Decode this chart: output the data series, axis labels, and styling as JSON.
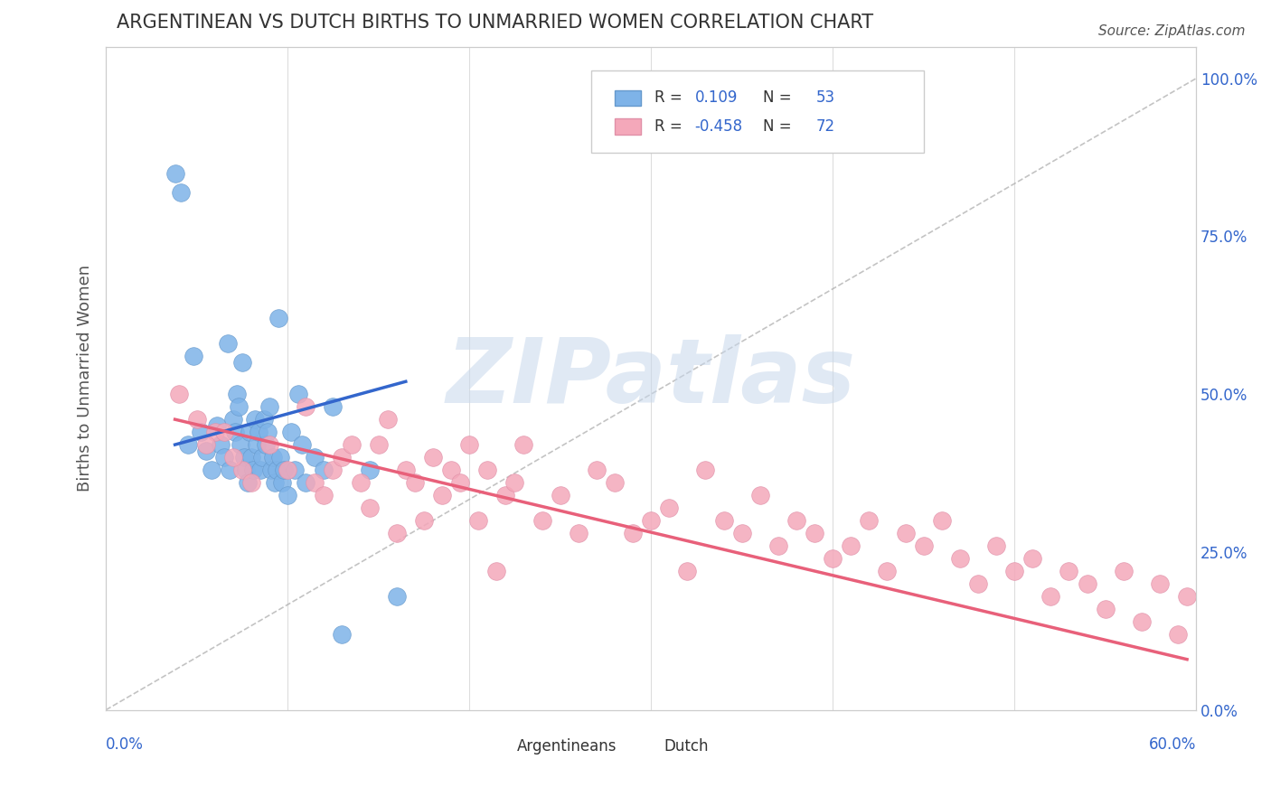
{
  "title": "ARGENTINEAN VS DUTCH BIRTHS TO UNMARRIED WOMEN CORRELATION CHART",
  "source": "Source: ZipAtlas.com",
  "ylabel": "Births to Unmarried Women",
  "right_yticks": [
    "0.0%",
    "25.0%",
    "50.0%",
    "75.0%",
    "100.0%"
  ],
  "right_ytick_vals": [
    0.0,
    0.25,
    0.5,
    0.75,
    1.0
  ],
  "xlim": [
    0.0,
    0.6
  ],
  "ylim": [
    0.0,
    1.05
  ],
  "legend_blue_r": "0.109",
  "legend_blue_n": "53",
  "legend_pink_r": "-0.458",
  "legend_pink_n": "72",
  "blue_color": "#7EB3E8",
  "pink_color": "#F4A8BA",
  "blue_line_color": "#3366CC",
  "pink_line_color": "#E8607A",
  "watermark_color": "#C8D8EC",
  "title_color": "#333333",
  "axis_label_color": "#3366CC",
  "blue_scatter_x": [
    0.038,
    0.041,
    0.045,
    0.048,
    0.052,
    0.055,
    0.058,
    0.061,
    0.063,
    0.065,
    0.067,
    0.068,
    0.07,
    0.071,
    0.072,
    0.073,
    0.074,
    0.075,
    0.076,
    0.077,
    0.078,
    0.079,
    0.08,
    0.081,
    0.082,
    0.083,
    0.084,
    0.085,
    0.086,
    0.087,
    0.088,
    0.089,
    0.09,
    0.091,
    0.092,
    0.093,
    0.094,
    0.095,
    0.096,
    0.097,
    0.098,
    0.1,
    0.102,
    0.104,
    0.106,
    0.108,
    0.11,
    0.115,
    0.12,
    0.125,
    0.13,
    0.145,
    0.16
  ],
  "blue_scatter_y": [
    0.85,
    0.82,
    0.42,
    0.56,
    0.44,
    0.41,
    0.38,
    0.45,
    0.42,
    0.4,
    0.58,
    0.38,
    0.46,
    0.44,
    0.5,
    0.48,
    0.42,
    0.55,
    0.4,
    0.38,
    0.36,
    0.44,
    0.4,
    0.38,
    0.46,
    0.42,
    0.44,
    0.38,
    0.4,
    0.46,
    0.42,
    0.44,
    0.48,
    0.38,
    0.4,
    0.36,
    0.38,
    0.62,
    0.4,
    0.36,
    0.38,
    0.34,
    0.44,
    0.38,
    0.5,
    0.42,
    0.36,
    0.4,
    0.38,
    0.48,
    0.12,
    0.38,
    0.18
  ],
  "pink_scatter_x": [
    0.06,
    0.075,
    0.08,
    0.09,
    0.1,
    0.11,
    0.115,
    0.12,
    0.125,
    0.13,
    0.135,
    0.14,
    0.145,
    0.15,
    0.155,
    0.16,
    0.165,
    0.17,
    0.175,
    0.18,
    0.185,
    0.19,
    0.195,
    0.2,
    0.205,
    0.21,
    0.215,
    0.22,
    0.225,
    0.23,
    0.24,
    0.25,
    0.26,
    0.27,
    0.28,
    0.29,
    0.3,
    0.31,
    0.32,
    0.33,
    0.34,
    0.35,
    0.36,
    0.37,
    0.38,
    0.39,
    0.4,
    0.41,
    0.42,
    0.43,
    0.44,
    0.45,
    0.46,
    0.47,
    0.48,
    0.49,
    0.5,
    0.51,
    0.52,
    0.53,
    0.54,
    0.55,
    0.56,
    0.57,
    0.58,
    0.59,
    0.595,
    0.04,
    0.05,
    0.055,
    0.065,
    0.07
  ],
  "pink_scatter_y": [
    0.44,
    0.38,
    0.36,
    0.42,
    0.38,
    0.48,
    0.36,
    0.34,
    0.38,
    0.4,
    0.42,
    0.36,
    0.32,
    0.42,
    0.46,
    0.28,
    0.38,
    0.36,
    0.3,
    0.4,
    0.34,
    0.38,
    0.36,
    0.42,
    0.3,
    0.38,
    0.22,
    0.34,
    0.36,
    0.42,
    0.3,
    0.34,
    0.28,
    0.38,
    0.36,
    0.28,
    0.3,
    0.32,
    0.22,
    0.38,
    0.3,
    0.28,
    0.34,
    0.26,
    0.3,
    0.28,
    0.24,
    0.26,
    0.3,
    0.22,
    0.28,
    0.26,
    0.3,
    0.24,
    0.2,
    0.26,
    0.22,
    0.24,
    0.18,
    0.22,
    0.2,
    0.16,
    0.22,
    0.14,
    0.2,
    0.12,
    0.18,
    0.5,
    0.46,
    0.42,
    0.44,
    0.4
  ],
  "blue_trend_x": [
    0.038,
    0.165
  ],
  "blue_trend_y": [
    0.42,
    0.52
  ],
  "pink_trend_x": [
    0.038,
    0.595
  ],
  "pink_trend_y": [
    0.46,
    0.08
  ],
  "diag_line_x": [
    0.0,
    0.6
  ],
  "diag_line_y": [
    0.0,
    1.0
  ]
}
